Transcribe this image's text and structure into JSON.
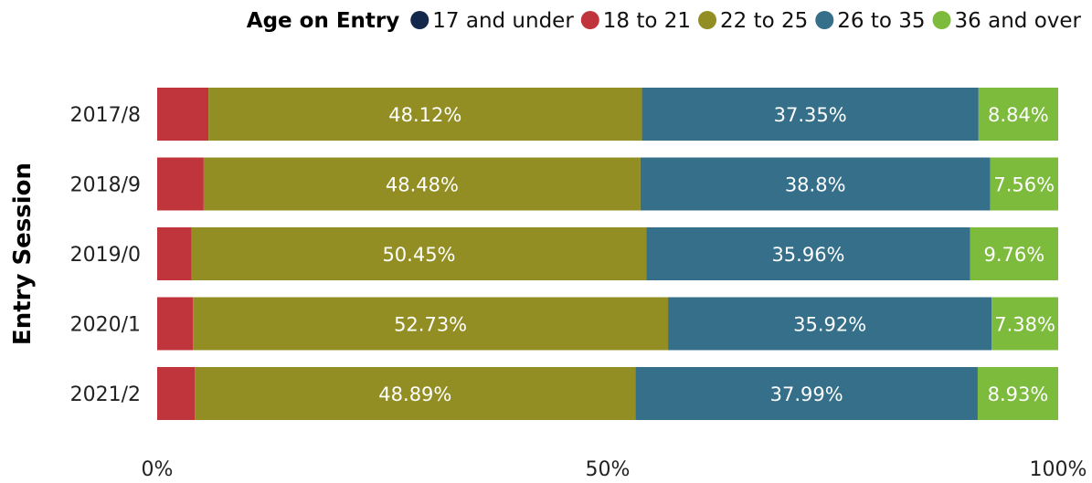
{
  "chart_data": {
    "type": "bar",
    "orientation": "horizontal",
    "stacked": "percent",
    "ylabel": "Entry Session",
    "xlabel": "",
    "x_ticks": [
      "0%",
      "50%",
      "100%"
    ],
    "xlim": [
      0,
      100
    ],
    "grid": false,
    "legend": {
      "title": "Age on Entry",
      "placement": "top-right"
    },
    "categories": [
      "2017/8",
      "2018/9",
      "2019/0",
      "2020/1",
      "2021/2"
    ],
    "series": [
      {
        "name": "17 and under",
        "color": "#14284b",
        "values": [
          0,
          0,
          0,
          0,
          0
        ],
        "labels": [
          "",
          "",
          "",
          "",
          ""
        ]
      },
      {
        "name": "18 to 21",
        "color": "#c0343c",
        "values": [
          5.69,
          5.16,
          3.83,
          3.97,
          4.19
        ],
        "labels": [
          "",
          "",
          "",
          "",
          ""
        ]
      },
      {
        "name": "22 to 25",
        "color": "#928e23",
        "values": [
          48.12,
          48.48,
          50.45,
          52.73,
          48.89
        ],
        "labels": [
          "48.12%",
          "48.48%",
          "50.45%",
          "52.73%",
          "48.89%"
        ]
      },
      {
        "name": "26 to 35",
        "color": "#366f89",
        "values": [
          37.35,
          38.8,
          35.96,
          35.92,
          37.99
        ],
        "labels": [
          "37.35%",
          "38.8%",
          "35.96%",
          "35.92%",
          "37.99%"
        ]
      },
      {
        "name": "36 and over",
        "color": "#7dbb3d",
        "values": [
          8.84,
          7.56,
          9.76,
          7.38,
          8.93
        ],
        "labels": [
          "8.84%",
          "7.56%",
          "9.76%",
          "7.38%",
          "8.93%"
        ]
      }
    ]
  }
}
